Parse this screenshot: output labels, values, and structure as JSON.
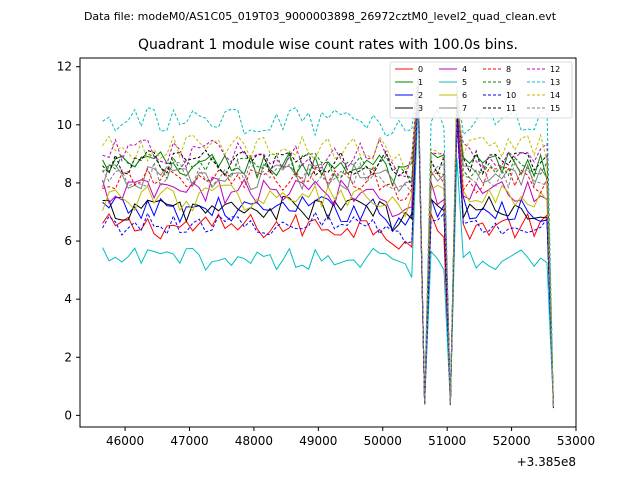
{
  "chart_data": {
    "type": "line",
    "suptitle": "Data file: modeM0/AS1C05_019T03_9000003898_26972cztM0_level2_quad_clean.evt",
    "title": "Quadrant 1 module wise count rates with 100.0s bins.",
    "xlabel": "",
    "ylabel": "",
    "x_offset_label": "+3.385e8",
    "xlim": [
      45300,
      53000
    ],
    "ylim": [
      -0.4,
      12.3
    ],
    "x_ticks": [
      46000,
      47000,
      48000,
      49000,
      50000,
      51000,
      52000,
      53000
    ],
    "x_tick_labels": [
      "46000",
      "47000",
      "48000",
      "49000",
      "50000",
      "51000",
      "52000",
      "53000"
    ],
    "y_ticks": [
      0,
      2,
      4,
      6,
      8,
      10,
      12
    ],
    "y_tick_labels": [
      "0",
      "2",
      "4",
      "6",
      "8",
      "10",
      "12"
    ],
    "legend_position": "top-right",
    "x_start": 45650,
    "x_step": 100,
    "num_points": 71,
    "dips": {
      "indices": [
        50,
        54,
        70
      ],
      "values": [
        0.4,
        0.4,
        0.3
      ]
    },
    "peaks": {
      "indices": [
        49,
        55
      ],
      "values": [
        11.8,
        11.4
      ]
    },
    "series": [
      {
        "name": "0",
        "color": "#ff0000",
        "dashed": false,
        "level": 6.5,
        "amplitude": 0.45
      },
      {
        "name": "1",
        "color": "#008000",
        "dashed": false,
        "level": 8.6,
        "amplitude": 0.5
      },
      {
        "name": "2",
        "color": "#0000ff",
        "dashed": false,
        "level": 7.1,
        "amplitude": 0.45
      },
      {
        "name": "3",
        "color": "#000000",
        "dashed": false,
        "level": 7.1,
        "amplitude": 0.45
      },
      {
        "name": "4",
        "color": "#bf00bf",
        "dashed": false,
        "level": 7.7,
        "amplitude": 0.5
      },
      {
        "name": "5",
        "color": "#00bfbf",
        "dashed": false,
        "level": 5.4,
        "amplitude": 0.4
      },
      {
        "name": "6",
        "color": "#bfbf00",
        "dashed": false,
        "level": 7.5,
        "amplitude": 0.5
      },
      {
        "name": "7",
        "color": "#808080",
        "dashed": false,
        "level": 8.2,
        "amplitude": 0.45
      },
      {
        "name": "8",
        "color": "#ff0000",
        "dashed": true,
        "level": 8.1,
        "amplitude": 0.45
      },
      {
        "name": "9",
        "color": "#008000",
        "dashed": true,
        "level": 8.6,
        "amplitude": 0.45
      },
      {
        "name": "10",
        "color": "#0000ff",
        "dashed": true,
        "level": 6.6,
        "amplitude": 0.4
      },
      {
        "name": "11",
        "color": "#000000",
        "dashed": true,
        "level": 8.7,
        "amplitude": 0.45
      },
      {
        "name": "12",
        "color": "#bf00bf",
        "dashed": true,
        "level": 9.0,
        "amplitude": 0.5
      },
      {
        "name": "13",
        "color": "#00bfbf",
        "dashed": true,
        "level": 10.1,
        "amplitude": 0.5
      },
      {
        "name": "14",
        "color": "#bfbf00",
        "dashed": true,
        "level": 9.2,
        "amplitude": 0.45
      },
      {
        "name": "15",
        "color": "#808080",
        "dashed": true,
        "level": 8.3,
        "amplitude": 0.45
      }
    ]
  }
}
